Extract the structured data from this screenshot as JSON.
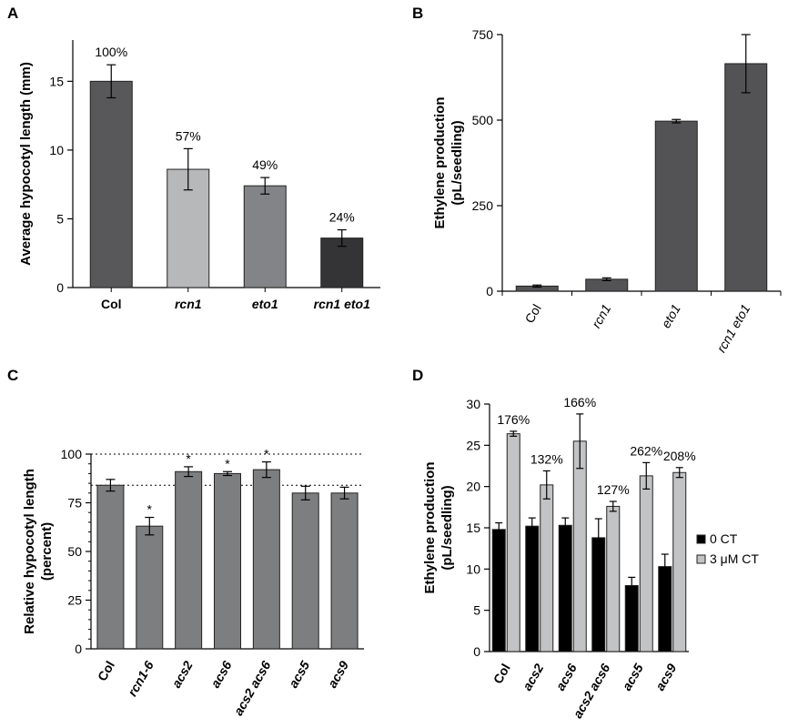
{
  "chart_data": [
    {
      "panel": "A",
      "type": "bar",
      "categories": [
        "Col",
        "rcn1",
        "eto1",
        "rcn1 eto1"
      ],
      "values": [
        15.0,
        8.6,
        7.4,
        3.6
      ],
      "errors": [
        1.2,
        1.5,
        0.6,
        0.6
      ],
      "annotations": [
        "100%",
        "57%",
        "49%",
        "24%"
      ],
      "colors": [
        "#58585a",
        "#b7b8ba",
        "#838487",
        "#343436"
      ],
      "ylabel": "Average hypocotyl length (mm)",
      "ylim": [
        0,
        18
      ],
      "yticks": [
        0,
        5,
        10,
        15
      ],
      "category_style": "bold-italic"
    },
    {
      "panel": "B",
      "type": "bar",
      "categories": [
        "Col",
        "rcn1",
        "eto1",
        "rcn1 eto1"
      ],
      "values": [
        15,
        35,
        497,
        665
      ],
      "errors": [
        3,
        4,
        5,
        85
      ],
      "colors": [
        "#535355",
        "#535355",
        "#535355",
        "#535355"
      ],
      "ylabel_lines": [
        "Ethylene production",
        "(pL/seedling)"
      ],
      "ylim": [
        0,
        750
      ],
      "yticks": [
        0,
        250,
        500,
        750
      ],
      "category_style": "rotated-italic"
    },
    {
      "panel": "C",
      "type": "bar",
      "categories": [
        "Col",
        "rcn1-6",
        "acs2",
        "acs6",
        "acs2 acs6",
        "acs5",
        "acs9"
      ],
      "values": [
        84,
        63,
        91,
        90,
        92,
        80,
        80
      ],
      "errors": [
        3,
        4.5,
        2.5,
        1,
        4,
        3.5,
        3
      ],
      "significance": [
        "",
        "*",
        "*",
        "*",
        "*",
        "",
        ""
      ],
      "colors": [
        "#7d7e80"
      ],
      "reference_lines": [
        100,
        84
      ],
      "ylabel_lines": [
        "Relative hypocotyl length",
        "(percent)"
      ],
      "ylim": [
        0,
        100
      ],
      "yticks": [
        0,
        25,
        50,
        75,
        100
      ],
      "category_style": "rotated-bold-italic"
    },
    {
      "panel": "D",
      "type": "bar",
      "categories": [
        "Col",
        "acs2",
        "acs6",
        "acs2 acs6",
        "acs5",
        "acs9"
      ],
      "series": [
        {
          "name": "0 CT",
          "values": [
            14.8,
            15.2,
            15.3,
            13.8,
            8.0,
            10.3
          ],
          "errors": [
            0.8,
            1.0,
            0.9,
            2.3,
            1.0,
            1.5
          ],
          "color": "#000000"
        },
        {
          "name": "3 μM CT",
          "values": [
            26.4,
            20.2,
            25.5,
            17.6,
            21.3,
            21.7
          ],
          "errors": [
            0.3,
            1.7,
            3.3,
            0.6,
            1.6,
            0.6
          ],
          "color": "#c2c3c5"
        }
      ],
      "annotations": [
        "176%",
        "132%",
        "166%",
        "127%",
        "262%",
        "208%"
      ],
      "ylabel_lines": [
        "Ethylene production",
        "(pL/seedling)"
      ],
      "ylim": [
        0,
        30
      ],
      "yticks": [
        0,
        5,
        10,
        15,
        20,
        25,
        30
      ],
      "legend": "right",
      "category_style": "rotated-bold-italic"
    }
  ],
  "panel_letters": [
    "A",
    "B",
    "C",
    "D"
  ]
}
